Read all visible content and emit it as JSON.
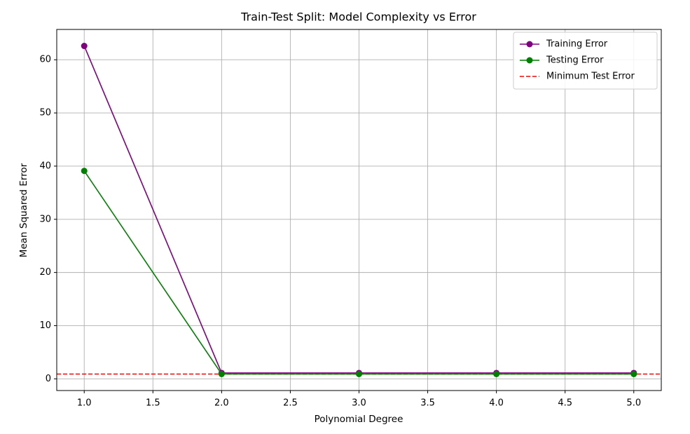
{
  "chart_data": {
    "type": "line",
    "title": "Train-Test Split: Model Complexity vs Error",
    "x_label": "Polynomial Degree",
    "y_label": "Mean Squared Error",
    "x": [
      1,
      2,
      3,
      4,
      5
    ],
    "series": [
      {
        "name": "Training Error",
        "color": "#800080",
        "marker": "circle",
        "values": [
          62.6,
          1.1,
          1.1,
          1.1,
          1.1
        ]
      },
      {
        "name": "Testing Error",
        "color": "#008000",
        "marker": "circle",
        "values": [
          39.1,
          0.9,
          0.9,
          0.9,
          0.9
        ]
      }
    ],
    "reference_lines": [
      {
        "name": "Minimum Test Error",
        "value": 0.9,
        "color": "#ff0000",
        "style": "dashed"
      }
    ],
    "xlim": [
      0.8,
      5.2
    ],
    "xticks": [
      {
        "value": 1,
        "label": "1.0"
      },
      {
        "value": 1.5,
        "label": "1.5"
      },
      {
        "value": 2,
        "label": "2.0"
      },
      {
        "value": 2.5,
        "label": "2.5"
      },
      {
        "value": 3,
        "label": "3.0"
      },
      {
        "value": 3.5,
        "label": "3.5"
      },
      {
        "value": 4,
        "label": "4.0"
      },
      {
        "value": 4.5,
        "label": "4.5"
      },
      {
        "value": 5,
        "label": "5.0"
      }
    ],
    "ylim": [
      -2.2,
      65.7
    ],
    "yticks": [
      0,
      10,
      20,
      30,
      40,
      50,
      60
    ],
    "grid": true,
    "legend": "upper right"
  }
}
